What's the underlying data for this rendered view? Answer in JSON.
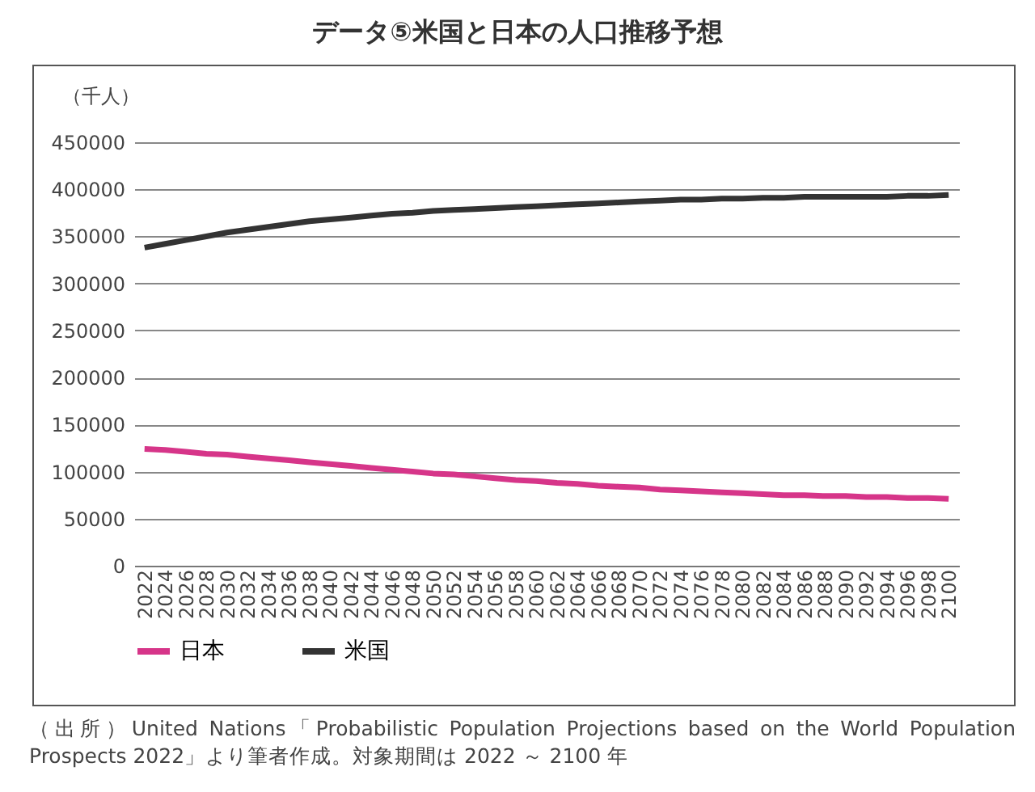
{
  "chart_data": {
    "type": "line",
    "title": "データ⑤米国と日本の人口推移予想",
    "ylabel": "（千人）",
    "categories": [
      "2022",
      "2024",
      "2026",
      "2028",
      "2030",
      "2032",
      "2034",
      "2036",
      "2038",
      "2040",
      "2042",
      "2044",
      "2046",
      "2048",
      "2050",
      "2052",
      "2054",
      "2056",
      "2058",
      "2060",
      "2062",
      "2064",
      "2066",
      "2068",
      "2070",
      "2072",
      "2074",
      "2076",
      "2078",
      "2080",
      "2082",
      "2084",
      "2086",
      "2088",
      "2090",
      "2092",
      "2094",
      "2096",
      "2098",
      "2100"
    ],
    "series": [
      {
        "name": "日本",
        "color": "#d63589",
        "values": [
          124000,
          123000,
          121000,
          119000,
          118000,
          116000,
          114000,
          112000,
          110000,
          108000,
          106000,
          104000,
          102000,
          100000,
          98000,
          97000,
          95000,
          93000,
          91000,
          90000,
          88000,
          87000,
          85000,
          84000,
          83000,
          81000,
          80000,
          79000,
          78000,
          77000,
          76000,
          75000,
          75000,
          74000,
          74000,
          73000,
          73000,
          72000,
          72000,
          71000
        ]
      },
      {
        "name": "米国",
        "color": "#333333",
        "values": [
          338000,
          342000,
          346000,
          350000,
          354000,
          357000,
          360000,
          363000,
          366000,
          368000,
          370000,
          372000,
          374000,
          375000,
          377000,
          378000,
          379000,
          380000,
          381000,
          382000,
          383000,
          384000,
          385000,
          386000,
          387000,
          388000,
          389000,
          389000,
          390000,
          390000,
          391000,
          391000,
          392000,
          392000,
          392000,
          392000,
          392000,
          393000,
          393000,
          394000
        ]
      }
    ],
    "ylim": [
      0,
      450000
    ],
    "yticks": [
      0,
      50000,
      100000,
      150000,
      200000,
      250000,
      300000,
      350000,
      400000,
      450000
    ],
    "grid": "y",
    "legend": "bottom",
    "marker": "none",
    "line_style": "solid",
    "annotations": [
      "（出所）United Nations「Probabilistic Population Projections based on the World Population Prospects 2022」より筆者作成。対象期間は 2022 ～ 2100 年"
    ]
  }
}
